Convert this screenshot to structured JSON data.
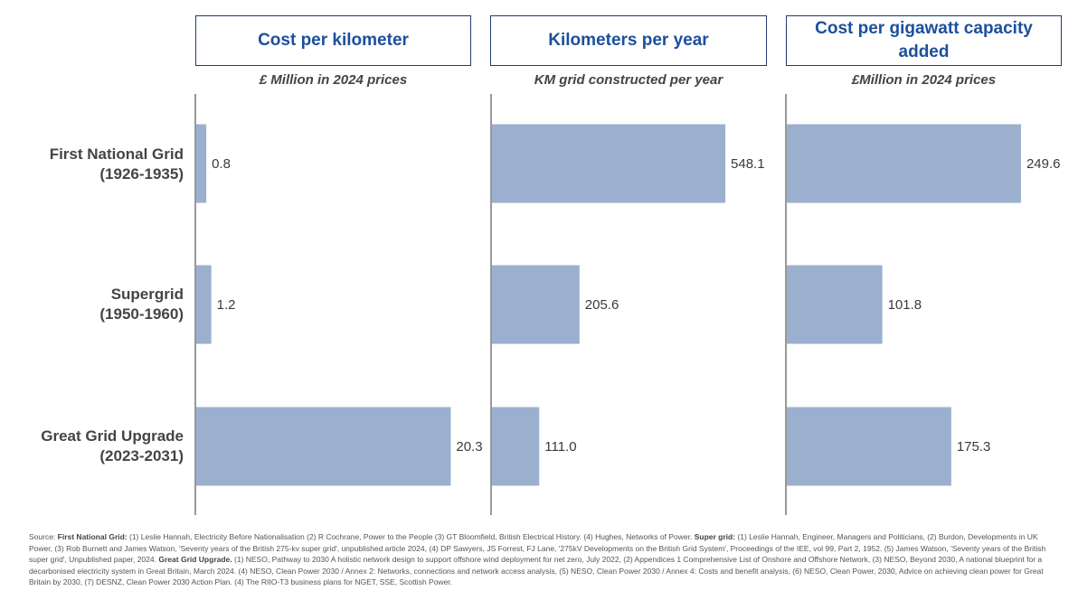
{
  "chart_data": [
    {
      "type": "bar",
      "orientation": "horizontal",
      "title": "Cost per kilometer",
      "subtitle": "£ Million in 2024 prices",
      "categories": [
        "First National Grid\n(1926-1935)",
        "Supergrid\n(1950-1960)",
        "Great Grid Upgrade\n(2023-2031)"
      ],
      "values": [
        0.8,
        1.2,
        20.3
      ],
      "value_labels": [
        "0.8",
        "1.2",
        "20.3"
      ],
      "xlim": [
        0,
        22
      ]
    },
    {
      "type": "bar",
      "orientation": "horizontal",
      "title": "Kilometers per year",
      "subtitle": "KM grid constructed per year",
      "categories": [
        "First National Grid\n(1926-1935)",
        "Supergrid\n(1950-1960)",
        "Great Grid Upgrade\n(2023-2031)"
      ],
      "values": [
        548.1,
        205.6,
        111.0
      ],
      "value_labels": [
        "548.1",
        "205.6",
        "111.0"
      ],
      "xlim": [
        0,
        650
      ]
    },
    {
      "type": "bar",
      "orientation": "horizontal",
      "title": "Cost per gigawatt capacity added",
      "subtitle": "£Million in 2024 prices",
      "categories": [
        "First National Grid\n(1926-1935)",
        "Supergrid\n(1950-1960)",
        "Great Grid Upgrade\n(2023-2031)"
      ],
      "values": [
        249.6,
        101.8,
        175.3
      ],
      "value_labels": [
        "249.6",
        "101.8",
        "175.3"
      ],
      "xlim": [
        0,
        294
      ]
    }
  ],
  "row_labels": [
    {
      "line1": "First National Grid",
      "line2": "(1926-1935)"
    },
    {
      "line1": "Supergrid",
      "line2": "(1950-1960)"
    },
    {
      "line1": "Great Grid Upgrade",
      "line2": "(2023-2031)"
    }
  ],
  "colors": {
    "bar": "#9bafcf",
    "title_text": "#1c4f9c",
    "title_border": "#1f3b6e",
    "axis": "#333333"
  },
  "source": {
    "prefix": "Source: ",
    "sections": [
      {
        "heading": "First National Grid:",
        "text": " (1) Leslie Hannah, Electricity Before Nationalisation (2) R Cochrane, Power to the People (3) GT Bloomfield, British Electrical History. (4) Hughes, Networks of Power. "
      },
      {
        "heading": "Super grid:",
        "text": " (1) Leslie Hannah, Engineer, Managers and Politicians, (2) Burdon, Developments in UK Power, (3) Rob Burnett and James Watson, 'Seventy years of the British 275-kv super grid', unpublished article 2024, (4) DP Sawyers, JS Forrest, FJ Lane, '275kV Developments on the British Grid System', Proceedings of the IEE, vol 99, Part 2, 1952. (5) James Watson, 'Seventy years of the British super grid', Unpublished paper, 2024. "
      },
      {
        "heading": "Great Grid Upgrade.",
        "text": " (1) NESO, Pathway to 2030 A holistic network design to support offshore wind deployment for net zero, July 2022, (2) Appendices 1 Comprehensive List of Onshore and Offshore Network, (3) NESO, Beyond 2030, A national blueprint for a decarbonised electricity system in Great Britain, March 2024. (4) NESO, Clean Power 2030 / Annex 2: Networks, connections and network access analysis, (5) NESO, Clean Power 2030 / Annex 4: Costs and benefit analysis, (6) NESO, Clean Power, 2030, Advice on achieving clean power for Great Britain by 2030, (7) DESNZ, Clean Power 2030 Action Plan. (4) The RIIO-T3 business plans for NGET, SSE, Scottish Power."
      }
    ]
  }
}
